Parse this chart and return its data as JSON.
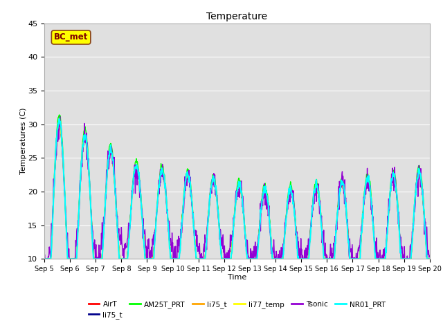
{
  "title": "Temperature",
  "xlabel": "Time",
  "ylabel": "Temperatures (C)",
  "ylim": [
    10,
    45
  ],
  "background_color": "#ffffff",
  "plot_bg_color": "#e0e0e0",
  "grid_color": "#ffffff",
  "annotation_text": "BC_met",
  "annotation_box_color": "#ffff00",
  "annotation_text_color": "#800000",
  "legend_entries": [
    "AirT",
    "li75_t",
    "AM25T_PRT",
    "li75_t",
    "li77_temp",
    "Tsonic",
    "NR01_PRT"
  ],
  "line_colors": [
    "#ff0000",
    "#00008b",
    "#00ff00",
    "#ffa500",
    "#ffff00",
    "#9400d3",
    "#00ffff"
  ],
  "line_widths": [
    1.0,
    1.0,
    1.0,
    1.0,
    1.0,
    1.0,
    1.5
  ],
  "figsize": [
    6.4,
    4.8
  ],
  "dpi": 100
}
